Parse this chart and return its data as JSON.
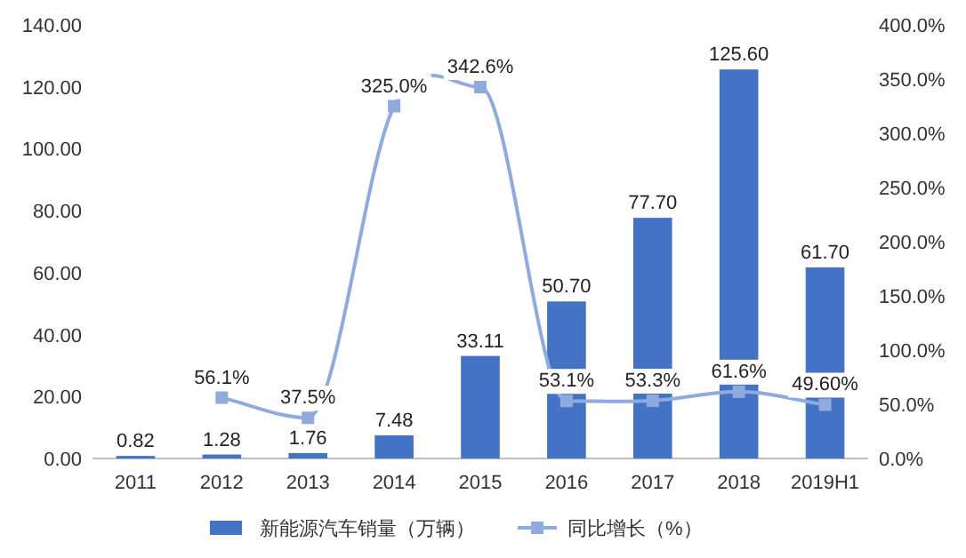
{
  "chart_data": {
    "type": "bar",
    "categories": [
      "2011",
      "2012",
      "2013",
      "2014",
      "2015",
      "2016",
      "2017",
      "2018",
      "2019H1"
    ],
    "series": [
      {
        "name": "新能源汽车销量（万辆）",
        "color": "#4472c4",
        "values": [
          0.82,
          1.28,
          1.76,
          7.48,
          33.11,
          50.7,
          77.7,
          125.6,
          61.7
        ],
        "value_labels": [
          "0.82",
          "1.28",
          "1.76",
          "7.48",
          "33.11",
          "50.70",
          "77.70",
          "125.60",
          "61.70"
        ]
      },
      {
        "name": "同比增长（%）",
        "type": "line",
        "axis": "y2",
        "color": "#8faadc",
        "marker": "square",
        "values": [
          null,
          56.1,
          37.5,
          325.0,
          342.6,
          53.1,
          53.3,
          61.6,
          49.6
        ],
        "value_labels": [
          null,
          "56.1%",
          "37.5%",
          "325.0%",
          "342.6%",
          "53.1%",
          "53.3%",
          "61.6%",
          "49.60%"
        ]
      }
    ],
    "ylim": [
      0,
      140
    ],
    "yticks": [
      {
        "value": 0,
        "label": "0.00"
      },
      {
        "value": 20,
        "label": "20.00"
      },
      {
        "value": 40,
        "label": "40.00"
      },
      {
        "value": 60,
        "label": "60.00"
      },
      {
        "value": 80,
        "label": "80.00"
      },
      {
        "value": 100,
        "label": "100.00"
      },
      {
        "value": 120,
        "label": "120.00"
      },
      {
        "value": 140,
        "label": "140.00"
      }
    ],
    "y2lim": [
      0,
      400
    ],
    "y2ticks": [
      {
        "value": 0,
        "label": "0.0%"
      },
      {
        "value": 50,
        "label": "50.0%"
      },
      {
        "value": 100,
        "label": "100.0%"
      },
      {
        "value": 150,
        "label": "150.0%"
      },
      {
        "value": 200,
        "label": "200.0%"
      },
      {
        "value": 250,
        "label": "250.0%"
      },
      {
        "value": 300,
        "label": "300.0%"
      },
      {
        "value": 350,
        "label": "350.0%"
      },
      {
        "value": 400,
        "label": "400.0%"
      }
    ],
    "legend": "bottom"
  }
}
